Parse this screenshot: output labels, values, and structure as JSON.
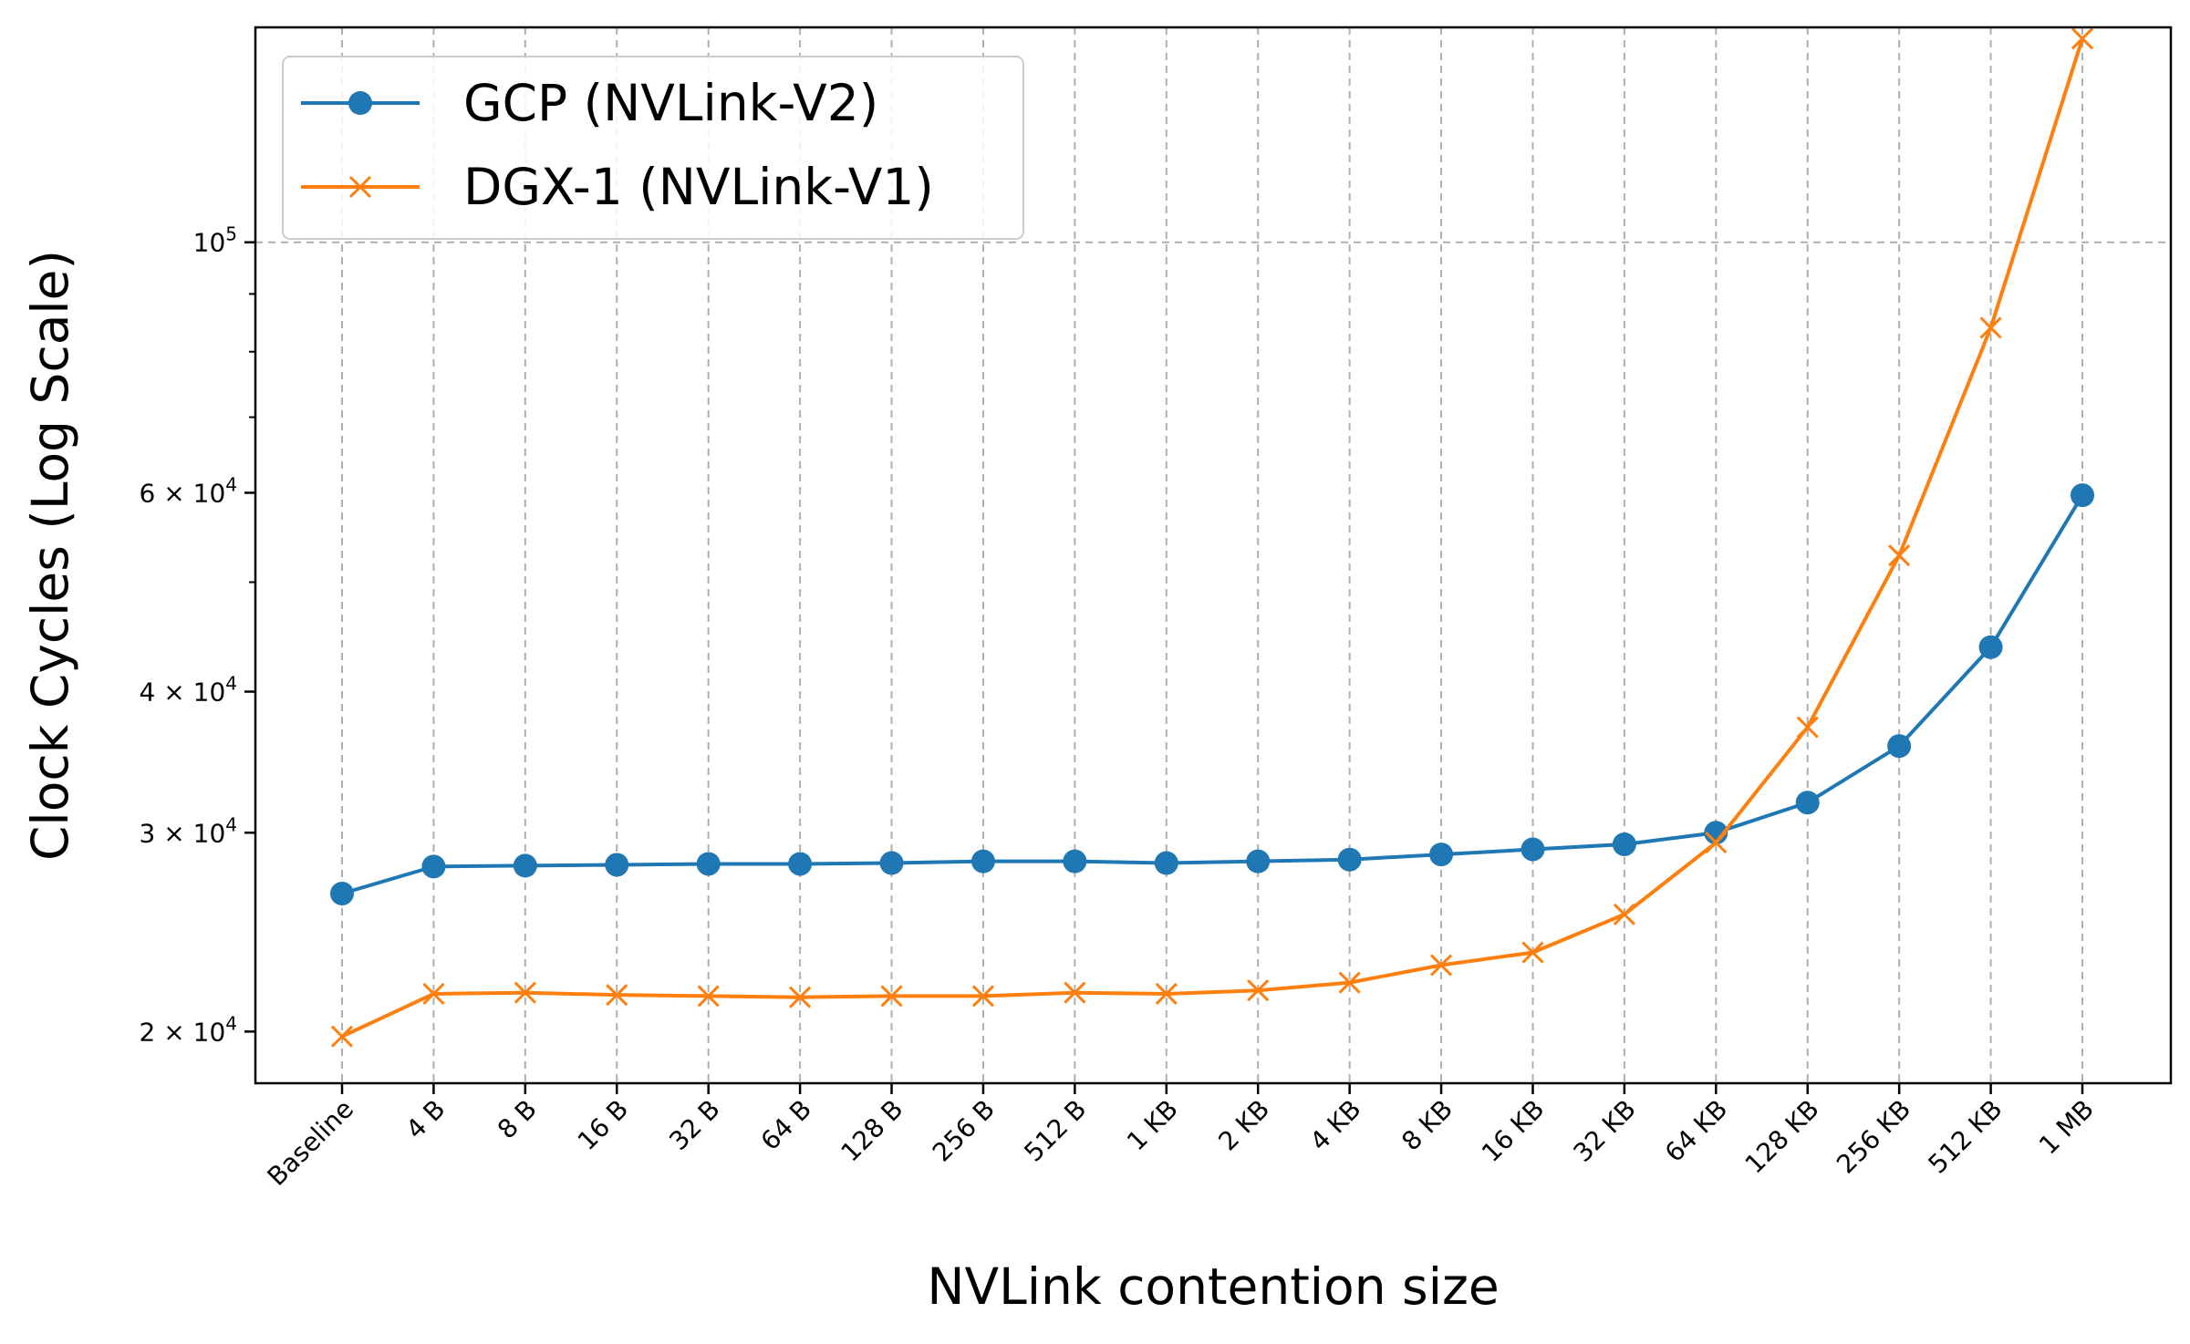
{
  "chart_data": {
    "type": "line",
    "title": "",
    "xlabel": "NVLink contention size",
    "ylabel": "Clock Cycles (Log Scale)",
    "yscale": "log",
    "ylim": [
      18000,
      155000
    ],
    "grid": true,
    "legend_position": "top-left",
    "categories": [
      "Baseline",
      "4 B",
      "8 B",
      "16 B",
      "32 B",
      "64 B",
      "128 B",
      "256 B",
      "512 B",
      "1 KB",
      "2 KB",
      "4 KB",
      "8 KB",
      "16 KB",
      "32 KB",
      "64 KB",
      "128 KB",
      "256 KB",
      "512 KB",
      "1 MB"
    ],
    "y_ticks": [
      {
        "value": 20000,
        "mantissa": "2",
        "exponent": "4"
      },
      {
        "value": 30000,
        "mantissa": "3",
        "exponent": "4"
      },
      {
        "value": 40000,
        "mantissa": "4",
        "exponent": "4"
      },
      {
        "value": 60000,
        "mantissa": "6",
        "exponent": "4"
      },
      {
        "value": 100000,
        "mantissa": "",
        "exponent": "5"
      }
    ],
    "tick_base": "10",
    "tick_times": "×",
    "series": [
      {
        "name": "GCP (NVLink-V2)",
        "color": "#1f77b4",
        "marker": "circle",
        "values": [
          26500,
          28000,
          28050,
          28100,
          28150,
          28150,
          28200,
          28300,
          28300,
          28200,
          28300,
          28400,
          28700,
          29000,
          29300,
          30000,
          31900,
          35800,
          43800,
          59700
        ]
      },
      {
        "name": "DGX-1 (NVLink-V1)",
        "color": "#ff7f0e",
        "marker": "x",
        "values": [
          19800,
          21600,
          21650,
          21550,
          21500,
          21450,
          21500,
          21500,
          21650,
          21600,
          21750,
          22100,
          22900,
          23500,
          25400,
          29400,
          37200,
          52800,
          84000,
          151500
        ]
      }
    ]
  }
}
